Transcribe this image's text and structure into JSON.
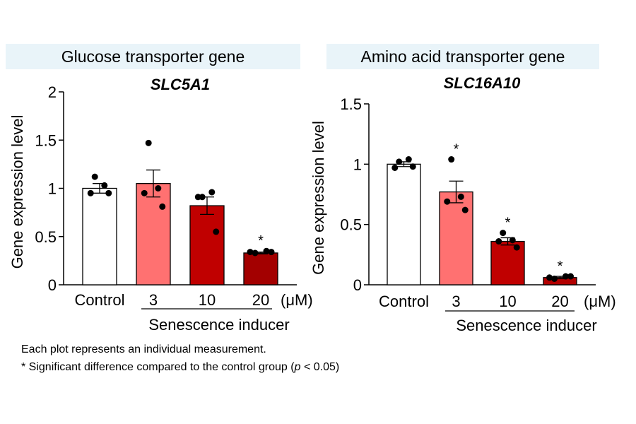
{
  "chart_data": [
    {
      "type": "bar",
      "panel_title": "Glucose transporter gene",
      "title": "SLC5A1",
      "ylabel": "Gene expression level",
      "xlabel": "Senescence inducer",
      "unit": "(μM)",
      "categories": [
        "Control",
        "3",
        "10",
        "20"
      ],
      "values": [
        1.0,
        1.05,
        0.82,
        0.33
      ],
      "sem": [
        0.05,
        0.14,
        0.09,
        0.01
      ],
      "points": [
        [
          1.12,
          1.03,
          0.95,
          0.95
        ],
        [
          1.47,
          1.0,
          0.95,
          0.81
        ],
        [
          0.91,
          0.96,
          0.91,
          0.55
        ],
        [
          0.33,
          0.35,
          0.34,
          0.34
        ]
      ],
      "significant": [
        false,
        false,
        false,
        true
      ],
      "colors": [
        "#ffffff",
        "#ff7171",
        "#c00000",
        "#a30000"
      ],
      "ylim": [
        0,
        2
      ],
      "yticks": [
        "0",
        "0.5",
        "1",
        "1.5",
        "2"
      ],
      "grid": false
    },
    {
      "type": "bar",
      "panel_title": "Amino acid transporter gene",
      "title": "SLC16A10",
      "ylabel": "Gene expression level",
      "xlabel": "Senescence inducer",
      "unit": "(μM)",
      "categories": [
        "Control",
        "3",
        "10",
        "20"
      ],
      "values": [
        1.0,
        0.77,
        0.36,
        0.06
      ],
      "sem": [
        0.02,
        0.09,
        0.03,
        0.01
      ],
      "points": [
        [
          1.02,
          1.04,
          0.97,
          0.98
        ],
        [
          1.04,
          0.73,
          0.69,
          0.62
        ],
        [
          0.43,
          0.37,
          0.36,
          0.31
        ],
        [
          0.05,
          0.07,
          0.06,
          0.07
        ]
      ],
      "significant": [
        false,
        true,
        true,
        true
      ],
      "colors": [
        "#ffffff",
        "#ff7171",
        "#c00000",
        "#b20000"
      ],
      "ylim": [
        0,
        1.5
      ],
      "yticks": [
        "0",
        "0.5",
        "1",
        "1.5"
      ],
      "grid": false
    }
  ],
  "notes": {
    "line1": "Each plot represents an individual measurement.",
    "line2_prefix": "* Significant difference compared to the control group (",
    "line2_p": "p",
    "line2_suffix": " < 0.05)"
  }
}
